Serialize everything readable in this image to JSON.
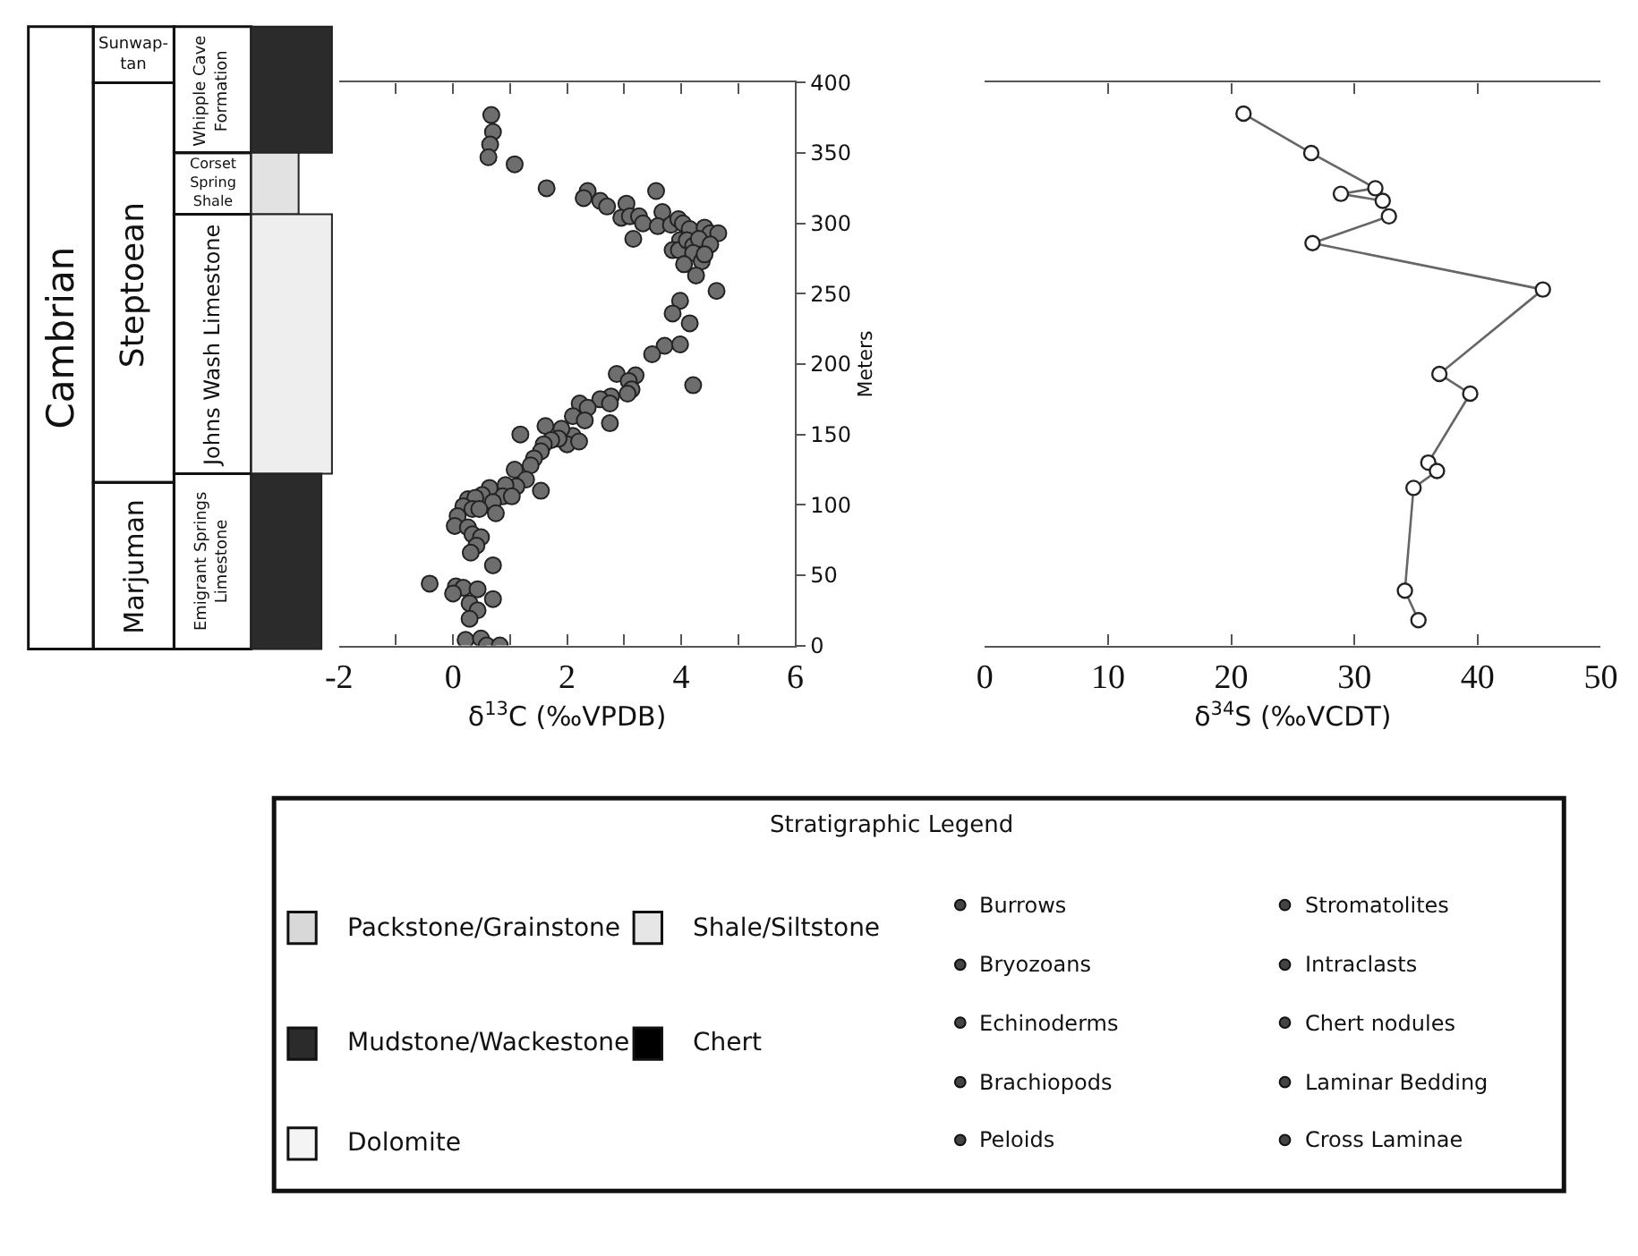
{
  "chart_data": [
    {
      "type": "other",
      "annotations": [
        "Cambrian",
        "Sunwap-\ntan",
        "Steptoean",
        "Marjuman",
        "Whipple Cave\nFormation",
        "Corset\nSpring\nShale",
        "Johns Wash Limestone",
        "Emigrant Springs\nLimestone"
      ]
    },
    {
      "type": "scatter",
      "color": "#6e6e6e",
      "marker": "circle",
      "xlabel": "δ$^{13}$C (‰VPDB)",
      "ylabel": "Meters",
      "xlim": [
        -2,
        6
      ],
      "xticks": [
        -2,
        {
          "value": -1,
          "label": null
        },
        0,
        {
          "value": 1,
          "label": null
        },
        2,
        {
          "value": 3,
          "label": null
        },
        4,
        {
          "value": 5,
          "label": null
        },
        6
      ],
      "ylim": [
        0,
        400
      ],
      "yticks": [
        0,
        50,
        100,
        150,
        200,
        250,
        300,
        350,
        400
      ],
      "x": [
        0.67,
        0.7,
        0.65,
        0.62,
        1.08,
        1.64,
        2.36,
        2.29,
        2.58,
        2.7,
        3.56,
        3.04,
        2.95,
        3.1,
        3.26,
        3.33,
        3.67,
        3.59,
        3.82,
        3.95,
        4.03,
        4.15,
        4.41,
        4.51,
        4.65,
        3.16,
        3.98,
        3.85,
        3.96,
        4.1,
        4.21,
        4.31,
        4.51,
        4.21,
        4.36,
        4.05,
        4.41,
        4.26,
        4.62,
        3.98,
        3.85,
        4.15,
        3.71,
        3.98,
        3.49,
        4.21,
        2.87,
        3.2,
        3.08,
        3.13,
        3.06,
        2.77,
        2.58,
        2.75,
        2.22,
        2.36,
        2.1,
        2.31,
        2.75,
        2.1,
        1.9,
        2.0,
        2.21,
        1.85,
        1.62,
        1.18,
        1.72,
        1.59,
        1.54,
        1.42,
        1.36,
        1.08,
        1.28,
        1.11,
        0.92,
        0.87,
        1.03,
        0.64,
        0.51,
        0.26,
        0.39,
        1.54,
        0.7,
        0.18,
        0.34,
        0.46,
        0.75,
        0.08,
        0.03,
        0.26,
        0.34,
        0.49,
        0.41,
        0.31,
        0.7,
        -0.41,
        0.05,
        0.18,
        0.0,
        0.43,
        0.7,
        0.29,
        0.43,
        0.29,
        0.22,
        0.49,
        0.59,
        0.82
      ],
      "values": [
        377,
        365,
        356,
        347,
        342,
        325,
        323,
        318,
        316,
        312,
        323,
        314,
        304,
        305,
        305,
        300,
        308,
        298,
        299,
        303,
        300,
        296,
        297,
        293,
        293,
        289,
        288,
        281,
        281,
        288,
        284,
        289,
        285,
        279,
        273,
        271,
        278,
        263,
        252,
        245,
        236,
        229,
        213,
        214,
        207,
        185,
        193,
        192,
        188,
        182,
        179,
        177,
        175,
        172,
        172,
        169,
        163,
        160,
        158,
        149,
        154,
        143,
        145,
        147,
        156,
        150,
        146,
        143,
        138,
        133,
        128,
        125,
        118,
        113,
        114,
        106,
        106,
        112,
        107,
        104,
        105,
        110,
        102,
        99,
        97,
        97,
        94,
        92,
        85,
        84,
        79,
        77,
        71,
        66,
        57,
        44,
        42,
        41,
        37,
        40,
        33,
        30,
        25,
        19,
        4,
        5,
        0,
        0
      ]
    },
    {
      "type": "line",
      "color": "#666666",
      "marker": "circle",
      "line_style": "solid",
      "tick_labels": "x",
      "xlabel": "δ$^{34}$S (‰VCDT)",
      "xlim": [
        0,
        50
      ],
      "xticks": [
        0,
        10,
        20,
        30,
        40,
        50
      ],
      "ylim": [
        0,
        400
      ],
      "yticks": [
        0,
        50,
        100,
        150,
        200,
        250,
        300,
        350,
        400
      ],
      "x": [
        21.0,
        26.5,
        31.7,
        28.9,
        32.3,
        32.8,
        26.6,
        45.3,
        36.9,
        39.4,
        36.0,
        36.7,
        34.8,
        34.1,
        35.2
      ],
      "values": [
        378,
        350,
        325,
        321,
        316,
        305,
        286,
        253,
        193,
        179,
        130,
        124,
        112,
        39,
        18
      ]
    },
    {
      "type": "other",
      "title": "Stratigraphic Legend",
      "annotations": [
        "Packstone/Grainstone",
        "Mudstone/Wackestone",
        "Dolomite",
        "Shale/Siltstone",
        "Chert",
        "Burrows",
        "Bryozoans",
        "Echinoderms",
        "Brachiopods",
        "Peloids",
        "Stromatolites",
        "Intraclasts",
        "Chert nodules",
        "Laminar Bedding",
        "Cross Laminae"
      ]
    }
  ]
}
